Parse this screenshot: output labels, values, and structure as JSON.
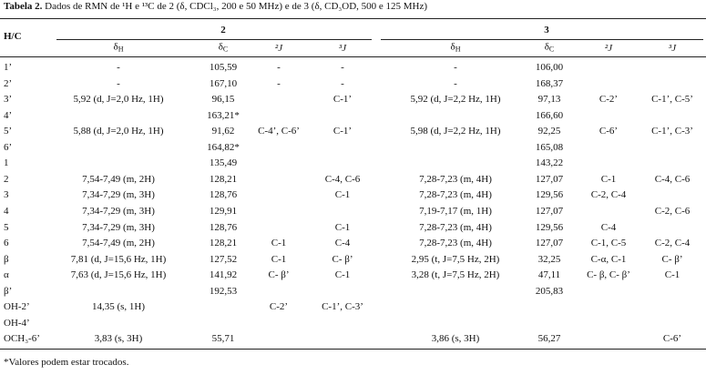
{
  "caption": {
    "label": "Tabela 2.",
    "text": "Dados de RMN de ¹H e ¹³C de 2 (δ, CDCl₃, 200 e 50 MHz) e de 3 (δ, CD₃OD, 500 e 125 MHz)"
  },
  "table": {
    "corner": "H/C",
    "groups": [
      "2",
      "3"
    ],
    "columns": [
      {
        "symbol": "δ",
        "sub": "H"
      },
      {
        "symbol": "δ",
        "sub": "C"
      },
      {
        "symbol": "²J"
      },
      {
        "symbol": "³J"
      },
      {
        "symbol": "δ",
        "sub": "H"
      },
      {
        "symbol": "δ",
        "sub": "C"
      },
      {
        "symbol": "²J"
      },
      {
        "symbol": "³J"
      }
    ],
    "rows": [
      [
        "1’",
        "-",
        "105,59",
        "-",
        "-",
        "-",
        "106,00",
        null,
        null
      ],
      [
        "2’",
        "-",
        "167,10",
        "-",
        "-",
        "-",
        "168,37",
        null,
        null
      ],
      [
        "3’",
        "5,92 (d, J=2,0 Hz, 1H)",
        "96,15",
        null,
        "C-1’",
        "5,92 (d, J=2,2 Hz, 1H)",
        "97,13",
        "C-2’",
        "C-1’, C-5’"
      ],
      [
        "4’",
        null,
        "163,21*",
        null,
        null,
        null,
        "166,60",
        null,
        null
      ],
      [
        "5’",
        "5,88 (d, J=2,0 Hz, 1H)",
        "91,62",
        "C-4’, C-6’",
        "C-1’",
        "5,98 (d, J=2,2 Hz, 1H)",
        "92,25",
        "C-6’",
        "C-1’, C-3’"
      ],
      [
        "6’",
        null,
        "164,82*",
        null,
        null,
        null,
        "165,08",
        null,
        null
      ],
      [
        "1",
        null,
        "135,49",
        null,
        null,
        null,
        "143,22",
        null,
        null
      ],
      [
        "2",
        "7,54-7,49 (m, 2H)",
        "128,21",
        null,
        "C-4, C-6",
        "7,28-7,23 (m, 4H)",
        "127,07",
        "C-1",
        "C-4, C-6"
      ],
      [
        "3",
        "7,34-7,29 (m, 3H)",
        "128,76",
        null,
        "C-1",
        "7,28-7,23 (m, 4H)",
        "129,56",
        "C-2, C-4",
        null
      ],
      [
        "4",
        "7,34-7,29 (m, 3H)",
        "129,91",
        null,
        null,
        "7,19-7,17 (m, 1H)",
        "127,07",
        null,
        "C-2, C-6"
      ],
      [
        "5",
        "7,34-7,29 (m, 3H)",
        "128,76",
        null,
        "C-1",
        "7,28-7,23 (m, 4H)",
        "129,56",
        "C-4",
        null
      ],
      [
        "6",
        "7,54-7,49 (m, 2H)",
        "128,21",
        "C-1",
        "C-4",
        "7,28-7,23 (m, 4H)",
        "127,07",
        "C-1, C-5",
        "C-2, C-4"
      ],
      [
        "β",
        "7,81 (d, J=15,6 Hz, 1H)",
        "127,52",
        "C-1",
        "C- β’",
        "2,95 (t, J=7,5 Hz, 2H)",
        "32,25",
        "C-α, C-1",
        "C- β’"
      ],
      [
        "α",
        "7,63 (d, J=15,6 Hz, 1H)",
        "141,92",
        "C- β’",
        "C-1",
        "3,28 (t, J=7,5 Hz, 2H)",
        "47,11",
        "C- β, C- β’",
        "C-1"
      ],
      [
        "β’",
        null,
        "192,53",
        null,
        null,
        null,
        "205,83",
        null,
        null
      ],
      [
        "OH-2’",
        "14,35 (s, 1H)",
        null,
        "C-2’",
        "C-1’, C-3’",
        null,
        null,
        null,
        null
      ],
      [
        "OH-4’",
        null,
        null,
        null,
        null,
        null,
        null,
        null,
        null
      ],
      [
        "OCH₃-6’",
        "3,83 (s, 3H)",
        "55,71",
        null,
        null,
        "3,86 (s, 3H)",
        "56,27",
        null,
        "C-6’"
      ]
    ]
  },
  "footnote": "*Valores podem estar trocados."
}
